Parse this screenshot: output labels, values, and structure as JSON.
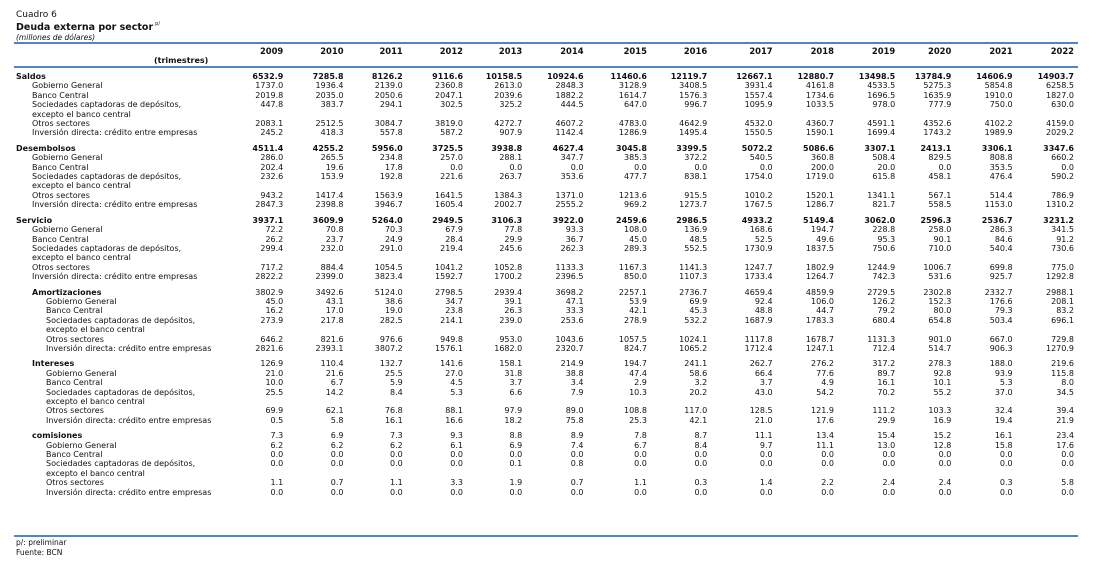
{
  "header": {
    "caption": "Cuadro 6",
    "title": "Deuda externa por sector",
    "title_note": "p/",
    "unit": "(millones de dólares)",
    "period_label": "(trimestres)"
  },
  "years": [
    "2009",
    "2010",
    "2011",
    "2012",
    "2013",
    "2014",
    "2015",
    "2016",
    "2017",
    "2018",
    "2019",
    "2020",
    "2021",
    "2022"
  ],
  "rows": [
    {
      "kind": "group",
      "label": "Saldos",
      "values": [
        "6532.9",
        "7285.8",
        "8126.2",
        "9116.6",
        "10158.5",
        "10924.6",
        "11460.6",
        "12119.7",
        "12667.1",
        "12880.7",
        "13498.5",
        "13784.9",
        "14606.9",
        "14903.7"
      ]
    },
    {
      "kind": "item",
      "label": "Gobierno General",
      "values": [
        "1737.0",
        "1936.4",
        "2139.0",
        "2360.8",
        "2613.0",
        "2848.3",
        "3128.9",
        "3408.5",
        "3931.4",
        "4161.8",
        "4533.5",
        "5275.3",
        "5854.8",
        "6258.5"
      ]
    },
    {
      "kind": "item",
      "label": "Banco Central",
      "values": [
        "2019.8",
        "2035.0",
        "2050.6",
        "2047.1",
        "2039.6",
        "1882.2",
        "1614.7",
        "1576.3",
        "1557.4",
        "1734.6",
        "1696.5",
        "1635.9",
        "1910.0",
        "1827.0"
      ]
    },
    {
      "kind": "item",
      "label": "Sociedades captadoras de depósitos,",
      "values": [
        "447.8",
        "383.7",
        "294.1",
        "302.5",
        "325.2",
        "444.5",
        "647.0",
        "996.7",
        "1095.9",
        "1033.5",
        "978.0",
        "777.9",
        "750.0",
        "630.0"
      ]
    },
    {
      "kind": "item",
      "label": "excepto el banco central",
      "values": [
        "",
        "",
        "",
        "",
        "",
        "",
        "",
        "",
        "",
        "",
        "",
        "",
        "",
        ""
      ]
    },
    {
      "kind": "item",
      "label": "Otros sectores",
      "values": [
        "2083.1",
        "2512.5",
        "3084.7",
        "3819.0",
        "4272.7",
        "4607.2",
        "4783.0",
        "4642.9",
        "4532.0",
        "4360.7",
        "4591.1",
        "4352.6",
        "4102.2",
        "4159.0"
      ]
    },
    {
      "kind": "item",
      "label": "Inversión directa: crédito entre empresas",
      "values": [
        "245.2",
        "418.3",
        "557.8",
        "587.2",
        "907.9",
        "1142.4",
        "1286.9",
        "1495.4",
        "1550.5",
        "1590.1",
        "1699.4",
        "1743.2",
        "1989.9",
        "2029.2"
      ]
    },
    {
      "kind": "gap"
    },
    {
      "kind": "group",
      "label": "Desembolsos",
      "values": [
        "4511.4",
        "4255.2",
        "5956.0",
        "3725.5",
        "3938.8",
        "4627.4",
        "3045.8",
        "3399.5",
        "5072.2",
        "5086.6",
        "3307.1",
        "2413.1",
        "3306.1",
        "3347.6"
      ]
    },
    {
      "kind": "item",
      "label": "Gobierno General",
      "values": [
        "286.0",
        "265.5",
        "234.8",
        "257.0",
        "288.1",
        "347.7",
        "385.3",
        "372.2",
        "540.5",
        "360.8",
        "508.4",
        "829.5",
        "808.8",
        "660.2"
      ]
    },
    {
      "kind": "item",
      "label": "Banco Central",
      "values": [
        "202.4",
        "19.6",
        "17.8",
        "0.0",
        "0.0",
        "0.0",
        "0.0",
        "0.0",
        "0.0",
        "200.0",
        "20.0",
        "0.0",
        "353.5",
        "0.0"
      ]
    },
    {
      "kind": "item",
      "label": "Sociedades captadoras de depósitos,",
      "values": [
        "232.6",
        "153.9",
        "192.8",
        "221.6",
        "263.7",
        "353.6",
        "477.7",
        "838.1",
        "1754.0",
        "1719.0",
        "615.8",
        "458.1",
        "476.4",
        "590.2"
      ]
    },
    {
      "kind": "item",
      "label": "excepto el banco central",
      "values": [
        "",
        "",
        "",
        "",
        "",
        "",
        "",
        "",
        "",
        "",
        "",
        "",
        "",
        ""
      ]
    },
    {
      "kind": "item",
      "label": "Otros sectores",
      "values": [
        "943.2",
        "1417.4",
        "1563.9",
        "1641.5",
        "1384.3",
        "1371.0",
        "1213.6",
        "915.5",
        "1010.2",
        "1520.1",
        "1341.1",
        "567.1",
        "514.4",
        "786.9"
      ]
    },
    {
      "kind": "item",
      "label": "Inversión directa: crédito entre empresas",
      "values": [
        "2847.3",
        "2398.8",
        "3946.7",
        "1605.4",
        "2002.7",
        "2555.2",
        "969.2",
        "1273.7",
        "1767.5",
        "1286.7",
        "821.7",
        "558.5",
        "1153.0",
        "1310.2"
      ]
    },
    {
      "kind": "gap"
    },
    {
      "kind": "group",
      "label": "Servicio",
      "values": [
        "3937.1",
        "3609.9",
        "5264.0",
        "2949.5",
        "3106.3",
        "3922.0",
        "2459.6",
        "2986.5",
        "4933.2",
        "5149.4",
        "3062.0",
        "2596.3",
        "2536.7",
        "3231.2"
      ]
    },
    {
      "kind": "item",
      "label": "Gobierno General",
      "values": [
        "72.2",
        "70.8",
        "70.3",
        "67.9",
        "77.8",
        "93.3",
        "108.0",
        "136.9",
        "168.6",
        "194.7",
        "228.8",
        "258.0",
        "286.3",
        "341.5"
      ]
    },
    {
      "kind": "item",
      "label": "Banco Central",
      "values": [
        "26.2",
        "23.7",
        "24.9",
        "28.4",
        "29.9",
        "36.7",
        "45.0",
        "48.5",
        "52.5",
        "49.6",
        "95.3",
        "90.1",
        "84.6",
        "91.2"
      ]
    },
    {
      "kind": "item",
      "label": "Sociedades captadoras de depósitos,",
      "values": [
        "299.4",
        "232.0",
        "291.0",
        "219.4",
        "245.6",
        "262.3",
        "289.3",
        "552.5",
        "1730.9",
        "1837.5",
        "750.6",
        "710.0",
        "540.4",
        "730.6"
      ]
    },
    {
      "kind": "item",
      "label": "excepto el banco central",
      "values": [
        "",
        "",
        "",
        "",
        "",
        "",
        "",
        "",
        "",
        "",
        "",
        "",
        "",
        ""
      ]
    },
    {
      "kind": "item",
      "label": "Otros sectores",
      "values": [
        "717.2",
        "884.4",
        "1054.5",
        "1041.2",
        "1052.8",
        "1133.3",
        "1167.3",
        "1141.3",
        "1247.7",
        "1802.9",
        "1244.9",
        "1006.7",
        "699.8",
        "775.0"
      ]
    },
    {
      "kind": "item",
      "label": "Inversión directa: crédito entre empresas",
      "values": [
        "2822.2",
        "2399.0",
        "3823.4",
        "1592.7",
        "1700.2",
        "2396.5",
        "850.0",
        "1107.3",
        "1733.4",
        "1264.7",
        "742.3",
        "531.6",
        "925.7",
        "1292.8"
      ]
    },
    {
      "kind": "gap"
    },
    {
      "kind": "subgroup",
      "label": "Amortizaciones",
      "values": [
        "3802.9",
        "3492.6",
        "5124.0",
        "2798.5",
        "2939.4",
        "3698.2",
        "2257.1",
        "2736.7",
        "4659.4",
        "4859.9",
        "2729.5",
        "2302.8",
        "2332.7",
        "2988.1"
      ]
    },
    {
      "kind": "subitem",
      "label": "Gobierno General",
      "values": [
        "45.0",
        "43.1",
        "38.6",
        "34.7",
        "39.1",
        "47.1",
        "53.9",
        "69.9",
        "92.4",
        "106.0",
        "126.2",
        "152.3",
        "176.6",
        "208.1"
      ]
    },
    {
      "kind": "subitem",
      "label": "Banco Central",
      "values": [
        "16.2",
        "17.0",
        "19.0",
        "23.8",
        "26.3",
        "33.3",
        "42.1",
        "45.3",
        "48.8",
        "44.7",
        "79.2",
        "80.0",
        "79.3",
        "83.2"
      ]
    },
    {
      "kind": "subitem",
      "label": "Sociedades captadoras de depósitos,",
      "values": [
        "273.9",
        "217.8",
        "282.5",
        "214.1",
        "239.0",
        "253.6",
        "278.9",
        "532.2",
        "1687.9",
        "1783.3",
        "680.4",
        "654.8",
        "503.4",
        "696.1"
      ]
    },
    {
      "kind": "subitem",
      "label": "excepto el banco central",
      "values": [
        "",
        "",
        "",
        "",
        "",
        "",
        "",
        "",
        "",
        "",
        "",
        "",
        "",
        ""
      ]
    },
    {
      "kind": "subitem",
      "label": "Otros sectores",
      "values": [
        "646.2",
        "821.6",
        "976.6",
        "949.8",
        "953.0",
        "1043.6",
        "1057.5",
        "1024.1",
        "1117.8",
        "1678.7",
        "1131.3",
        "901.0",
        "667.0",
        "729.8"
      ]
    },
    {
      "kind": "subitem",
      "label": "Inversión directa: crédito entre empresas",
      "values": [
        "2821.6",
        "2393.1",
        "3807.2",
        "1576.1",
        "1682.0",
        "2320.7",
        "824.7",
        "1065.2",
        "1712.4",
        "1247.1",
        "712.4",
        "514.7",
        "906.3",
        "1270.9"
      ]
    },
    {
      "kind": "gap"
    },
    {
      "kind": "subgroup",
      "label": "Intereses",
      "values": [
        "126.9",
        "110.4",
        "132.7",
        "141.6",
        "158.1",
        "214.9",
        "194.7",
        "241.1",
        "262.7",
        "276.2",
        "317.2",
        "278.3",
        "188.0",
        "219.6"
      ]
    },
    {
      "kind": "subitem",
      "label": "Gobierno General",
      "values": [
        "21.0",
        "21.6",
        "25.5",
        "27.0",
        "31.8",
        "38.8",
        "47.4",
        "58.6",
        "66.4",
        "77.6",
        "89.7",
        "92.8",
        "93.9",
        "115.8"
      ]
    },
    {
      "kind": "subitem",
      "label": "Banco Central",
      "values": [
        "10.0",
        "6.7",
        "5.9",
        "4.5",
        "3.7",
        "3.4",
        "2.9",
        "3.2",
        "3.7",
        "4.9",
        "16.1",
        "10.1",
        "5.3",
        "8.0"
      ]
    },
    {
      "kind": "subitem",
      "label": "Sociedades captadoras de depósitos,",
      "values": [
        "25.5",
        "14.2",
        "8.4",
        "5.3",
        "6.6",
        "7.9",
        "10.3",
        "20.2",
        "43.0",
        "54.2",
        "70.2",
        "55.2",
        "37.0",
        "34.5"
      ]
    },
    {
      "kind": "subitem",
      "label": "excepto el banco central",
      "values": [
        "",
        "",
        "",
        "",
        "",
        "",
        "",
        "",
        "",
        "",
        "",
        "",
        "",
        ""
      ]
    },
    {
      "kind": "subitem",
      "label": "Otros sectores",
      "values": [
        "69.9",
        "62.1",
        "76.8",
        "88.1",
        "97.9",
        "89.0",
        "108.8",
        "117.0",
        "128.5",
        "121.9",
        "111.2",
        "103.3",
        "32.4",
        "39.4"
      ]
    },
    {
      "kind": "subitem",
      "label": "Inversión directa: crédito entre empresas",
      "values": [
        "0.5",
        "5.8",
        "16.1",
        "16.6",
        "18.2",
        "75.8",
        "25.3",
        "42.1",
        "21.0",
        "17.6",
        "29.9",
        "16.9",
        "19.4",
        "21.9"
      ]
    },
    {
      "kind": "gap"
    },
    {
      "kind": "subgroup",
      "label": "comisiones",
      "values": [
        "7.3",
        "6.9",
        "7.3",
        "9.3",
        "8.8",
        "8.9",
        "7.8",
        "8.7",
        "11.1",
        "13.4",
        "15.4",
        "15.2",
        "16.1",
        "23.4"
      ]
    },
    {
      "kind": "subitem",
      "label": "Gobierno General",
      "values": [
        "6.2",
        "6.2",
        "6.2",
        "6.1",
        "6.9",
        "7.4",
        "6.7",
        "8.4",
        "9.7",
        "11.1",
        "13.0",
        "12.8",
        "15.8",
        "17.6"
      ]
    },
    {
      "kind": "subitem",
      "label": "Banco Central",
      "values": [
        "0.0",
        "0.0",
        "0.0",
        "0.0",
        "0.0",
        "0.0",
        "0.0",
        "0.0",
        "0.0",
        "0.0",
        "0.0",
        "0.0",
        "0.0",
        "0.0"
      ]
    },
    {
      "kind": "subitem",
      "label": "Sociedades captadoras de depósitos,",
      "values": [
        "0.0",
        "0.0",
        "0.0",
        "0.0",
        "0.1",
        "0.8",
        "0.0",
        "0.0",
        "0.0",
        "0.0",
        "0.0",
        "0.0",
        "0.0",
        "0.0"
      ]
    },
    {
      "kind": "subitem",
      "label": "excepto el banco central",
      "values": [
        "",
        "",
        "",
        "",
        "",
        "",
        "",
        "",
        "",
        "",
        "",
        "",
        "",
        ""
      ]
    },
    {
      "kind": "subitem",
      "label": "Otros sectores",
      "values": [
        "1.1",
        "0.7",
        "1.1",
        "3.3",
        "1.9",
        "0.7",
        "1.1",
        "0.3",
        "1.4",
        "2.2",
        "2.4",
        "2.4",
        "0.3",
        "5.8"
      ]
    },
    {
      "kind": "subitem",
      "label": "Inversión directa: crédito entre empresas",
      "values": [
        "0.0",
        "0.0",
        "0.0",
        "0.0",
        "0.0",
        "0.0",
        "0.0",
        "0.0",
        "0.0",
        "0.0",
        "0.0",
        "0.0",
        "0.0",
        "0.0"
      ]
    }
  ],
  "footer": {
    "note": "p/: preliminar",
    "source": "Fuente: BCN"
  },
  "colors": {
    "rule": "#4a86c8"
  }
}
